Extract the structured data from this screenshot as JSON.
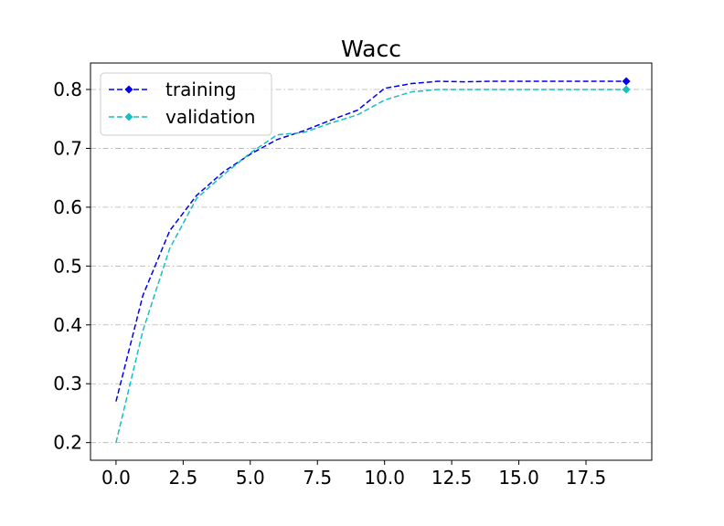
{
  "chart_data": {
    "type": "line",
    "title": "Wacc",
    "xlabel": "",
    "ylabel": "",
    "xlim": [
      -0.95,
      19.95
    ],
    "ylim": [
      0.17,
      0.845
    ],
    "xticks": [
      0.0,
      2.5,
      5.0,
      7.5,
      10.0,
      12.5,
      15.0,
      17.5
    ],
    "xtick_labels": [
      "0.0",
      "2.5",
      "5.0",
      "7.5",
      "10.0",
      "12.5",
      "15.0",
      "17.5"
    ],
    "yticks": [
      0.2,
      0.3,
      0.4,
      0.5,
      0.6,
      0.7,
      0.8
    ],
    "ytick_labels": [
      "0.2",
      "0.3",
      "0.4",
      "0.5",
      "0.6",
      "0.7",
      "0.8"
    ],
    "grid": "horizontal dash-dot",
    "legend_position": "top-left",
    "x": [
      0,
      1,
      2,
      3,
      4,
      5,
      6,
      7,
      8,
      9,
      10,
      11,
      12,
      13,
      14,
      15,
      16,
      17,
      18,
      19
    ],
    "series": [
      {
        "name": "training",
        "color": "#0000ee",
        "marker": "diamond",
        "marker_on_last_point": true,
        "values": [
          0.27,
          0.45,
          0.56,
          0.62,
          0.66,
          0.69,
          0.715,
          0.73,
          0.748,
          0.765,
          0.802,
          0.81,
          0.814,
          0.813,
          0.814,
          0.814,
          0.814,
          0.814,
          0.814,
          0.814
        ]
      },
      {
        "name": "validation",
        "color": "#17bfbf",
        "marker": "diamond",
        "marker_on_last_point": true,
        "values": [
          0.2,
          0.39,
          0.53,
          0.615,
          0.655,
          0.692,
          0.723,
          0.727,
          0.743,
          0.757,
          0.782,
          0.796,
          0.8,
          0.8,
          0.8,
          0.8,
          0.8,
          0.8,
          0.8,
          0.8
        ]
      }
    ]
  }
}
